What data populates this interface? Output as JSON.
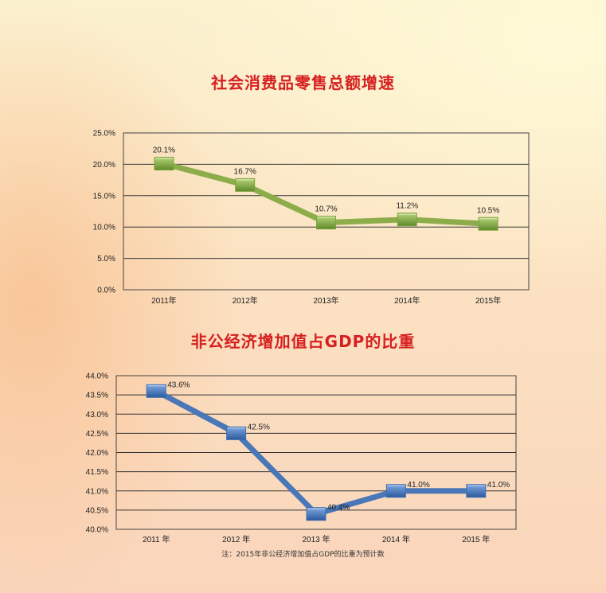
{
  "chart_data": [
    {
      "type": "line",
      "title": "社会消费品零售总额增速",
      "categories": [
        "2011年",
        "2012年",
        "2013年",
        "2014年",
        "2015年"
      ],
      "values": [
        20.1,
        16.7,
        10.7,
        11.2,
        10.5
      ],
      "data_labels": [
        "20.1%",
        "16.7%",
        "10.7%",
        "11.2%",
        "10.5%"
      ],
      "y_ticks": [
        "0.0%",
        "5.0%",
        "10.0%",
        "15.0%",
        "20.0%",
        "25.0%"
      ],
      "ylim": [
        0,
        25
      ],
      "grid": true,
      "color": "#8cad4a",
      "marker_color": "#7ea33d"
    },
    {
      "type": "line",
      "title": "非公经济增加值占GDP的比重",
      "categories": [
        "2011 年",
        "2012 年",
        "2013 年",
        "2014 年",
        "2015 年"
      ],
      "values": [
        43.6,
        42.5,
        40.4,
        41.0,
        41.0
      ],
      "data_labels": [
        "43.6%",
        "42.5%",
        "40.4%",
        "41.0%",
        "41.0%"
      ],
      "y_ticks": [
        "40.0%",
        "40.5%",
        "41.0%",
        "41.5%",
        "42.0%",
        "42.5%",
        "43.0%",
        "43.5%",
        "44.0%"
      ],
      "ylim": [
        40,
        44
      ],
      "grid": true,
      "color": "#4a77b8",
      "marker_color": "#3d6fb3",
      "note": "注：2015年非公经济增加值占GDP的比重为预计数"
    }
  ]
}
